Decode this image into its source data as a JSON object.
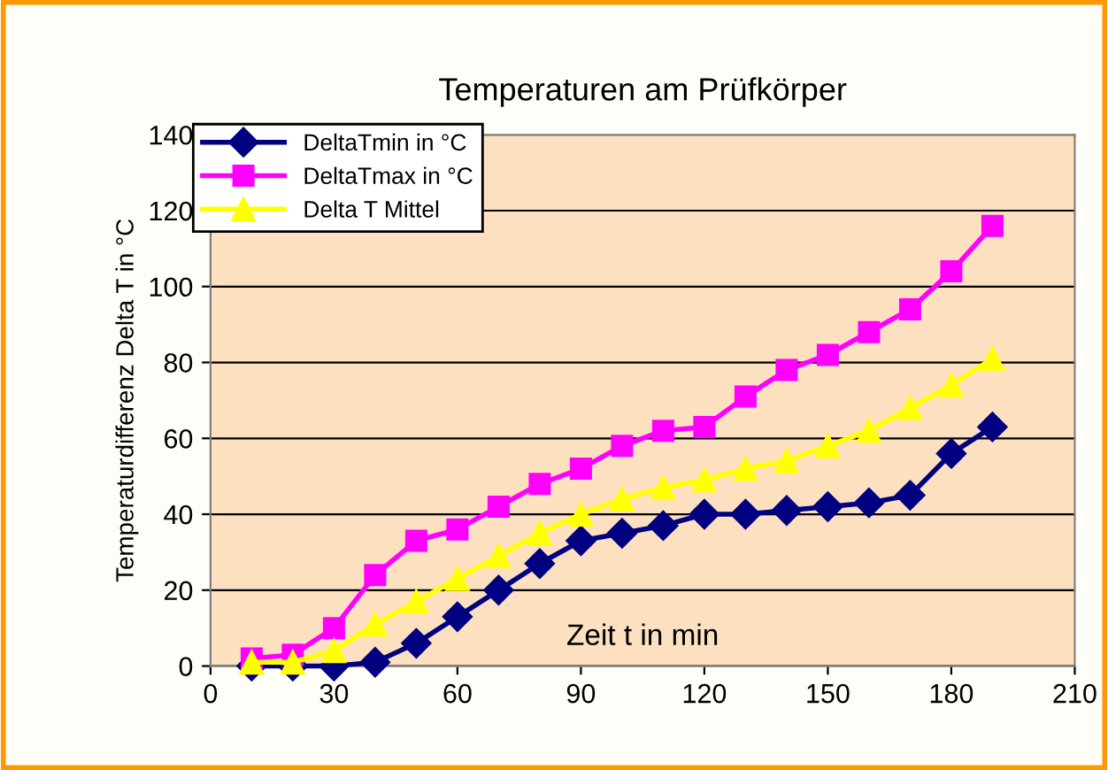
{
  "chart_data": {
    "type": "line",
    "title": "Temperaturen am Prüfkörper",
    "xlabel": "Zeit t in min",
    "ylabel": "Temperaturdifferenz Delta T in °C",
    "x": [
      10,
      20,
      30,
      40,
      50,
      60,
      70,
      80,
      90,
      100,
      110,
      120,
      130,
      140,
      150,
      160,
      170,
      180,
      190
    ],
    "series": [
      {
        "name": "DeltaTmin in °C",
        "color": "#000080",
        "marker": "diamond",
        "values": [
          0,
          0,
          0,
          1,
          6,
          13,
          20,
          27,
          33,
          35,
          37,
          40,
          40,
          41,
          42,
          43,
          45,
          56,
          63
        ]
      },
      {
        "name": "DeltaTmax in °C",
        "color": "#ff00ff",
        "marker": "square",
        "values": [
          2,
          3,
          10,
          24,
          33,
          36,
          42,
          48,
          52,
          58,
          62,
          63,
          71,
          78,
          82,
          88,
          94,
          104,
          116
        ]
      },
      {
        "name": "Delta T Mittel",
        "color": "#ffff00",
        "marker": "triangle",
        "values": [
          1,
          1,
          4,
          11,
          17,
          23,
          29,
          35,
          40,
          44,
          47,
          49,
          52,
          54,
          58,
          62,
          68,
          74,
          81
        ]
      }
    ],
    "xlim": [
      0,
      210
    ],
    "xticks": [
      0,
      30,
      60,
      90,
      120,
      150,
      180,
      210
    ],
    "ylim": [
      0,
      140
    ],
    "yticks": [
      0,
      20,
      40,
      60,
      80,
      100,
      120,
      140
    ],
    "grid": "y",
    "legend": "top left",
    "line_style": "solid"
  }
}
